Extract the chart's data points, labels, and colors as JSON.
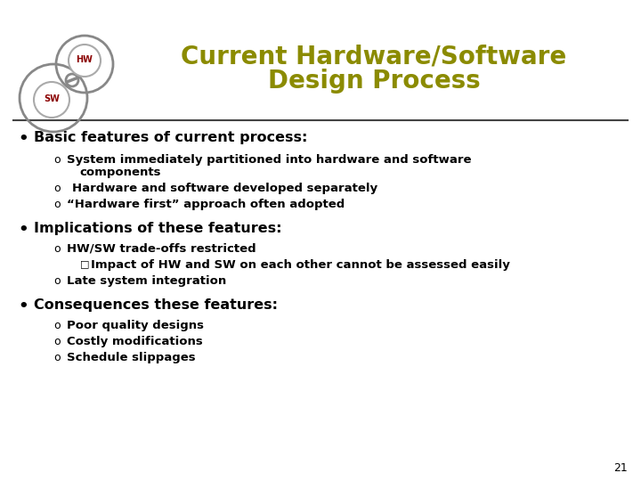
{
  "title_line1": "Current Hardware/Software",
  "title_line2": "Design Process",
  "title_color": "#8B8B00",
  "bg_color": "#FFFFFF",
  "slide_number": "21",
  "bullet1_header": "Basic features of current process:",
  "bullet2_header": "Implications of these features:",
  "bullet3_header": "Consequences these features:",
  "text_color": "#000000",
  "header_fontsize": 11.5,
  "sub_fontsize": 9.5,
  "title_fontsize": 20,
  "logo_hw_text": "HW",
  "logo_sw_text": "SW",
  "logo_text_color": "#8B0000"
}
